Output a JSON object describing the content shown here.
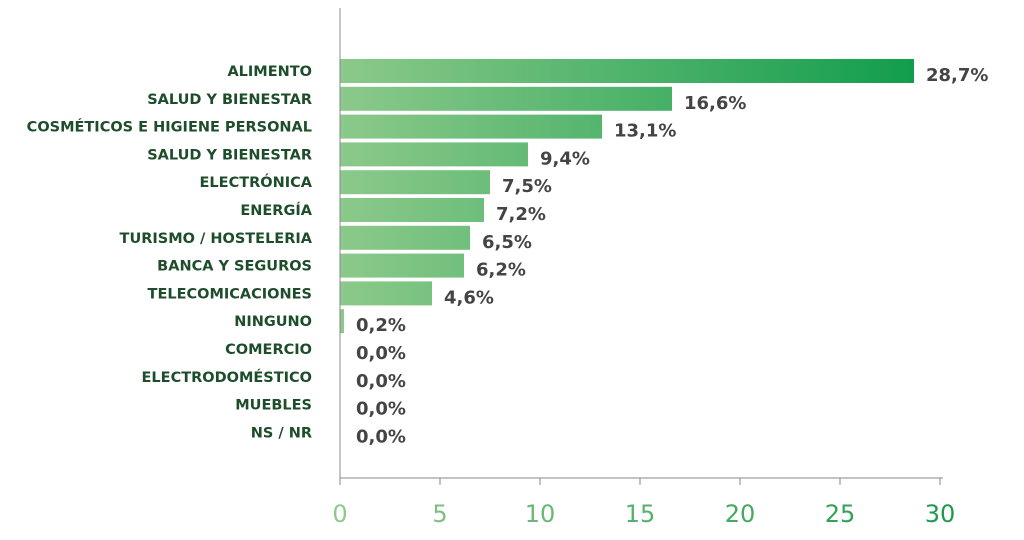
{
  "colors": {
    "bar_start": "#8cc98a",
    "bar_end": "#0c9b4a",
    "category_text": "#1e4d2b",
    "value_text": "#444444",
    "axis": "#888888",
    "tick_start": "#8cc98a",
    "tick_end": "#1f9a4b"
  },
  "chart_data": {
    "type": "bar",
    "orientation": "horizontal",
    "categories": [
      "ALIMENTO",
      "SALUD Y BIENESTAR",
      "COSMÉTICOS E HIGIENE PERSONAL",
      "SALUD Y BIENESTAR",
      "ELECTRÓNICA",
      "ENERGÍA",
      "TURISMO / HOSTELERIA",
      "BANCA Y SEGUROS",
      "TELECOMICACIONES",
      "NINGUNO",
      "COMERCIO",
      "ELECTRODOMÉSTICO",
      "MUEBLES",
      "NS / NR"
    ],
    "values": [
      28.7,
      16.6,
      13.1,
      9.4,
      7.5,
      7.2,
      6.5,
      6.2,
      4.6,
      0.2,
      0.0,
      0.0,
      0.0,
      0.0
    ],
    "value_labels": [
      "28,7%",
      "16,6%",
      "13,1%",
      "9,4%",
      "7,5%",
      "7,2%",
      "6,5%",
      "6,2%",
      "4,6%",
      "0,2%",
      "0,0%",
      "0,0%",
      "0,0%",
      "0,0%"
    ],
    "xlim": [
      0,
      30
    ],
    "x_ticks": [
      0,
      5,
      10,
      15,
      20,
      25,
      30
    ],
    "x_tick_labels": [
      "0",
      "5",
      "10",
      "15",
      "20",
      "25",
      "30"
    ],
    "title": "",
    "xlabel": "",
    "ylabel": "",
    "grid": false,
    "legend": "none"
  }
}
